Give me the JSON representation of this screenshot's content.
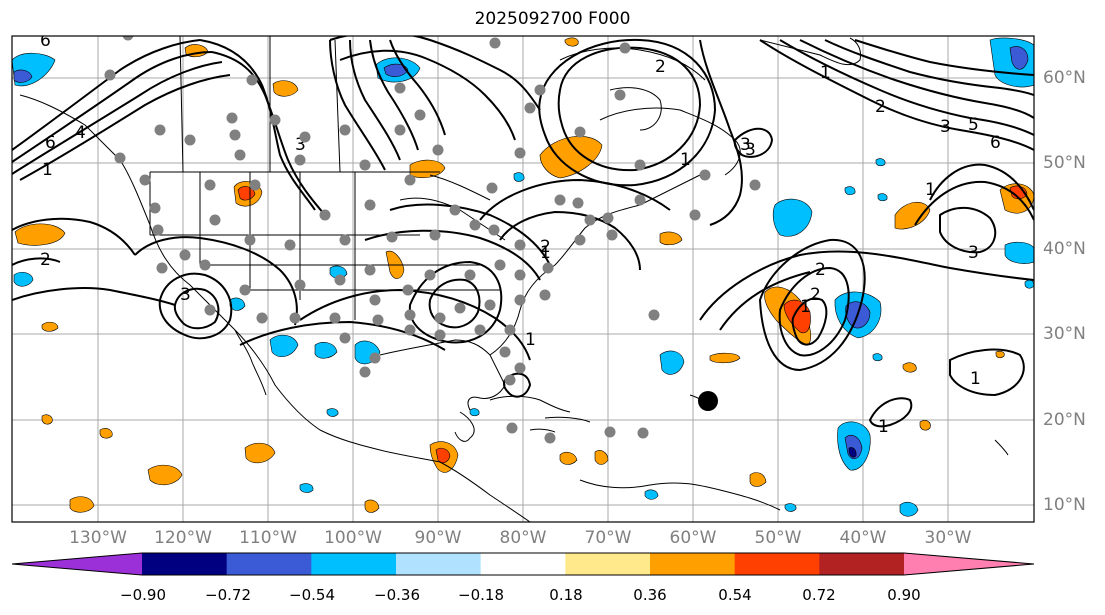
{
  "title": "2025092700 F000",
  "lat_labels": [
    "60°N",
    "50°N",
    "40°N",
    "30°N",
    "20°N",
    "10°N"
  ],
  "lon_labels": [
    "130°W",
    "120°W",
    "110°W",
    "100°W",
    "90°W",
    "80°W",
    "70°W",
    "60°W",
    "50°W",
    "40°W",
    "30°W"
  ],
  "contour_labels": [
    "6",
    "1",
    "6",
    "4",
    "3",
    "2",
    "3",
    "2",
    "1",
    "1",
    "3",
    "5",
    "6",
    "1",
    "2",
    "3",
    "1",
    "2",
    "1",
    "1",
    "2",
    "3",
    "1",
    "2",
    "3",
    "1"
  ],
  "colorbar": {
    "ticks": [
      "−0.90",
      "−0.72",
      "−0.54",
      "−0.36",
      "−0.18",
      "0.18",
      "0.36",
      "0.54",
      "0.72",
      "0.90"
    ],
    "colors": [
      "#9b30d8",
      "#000080",
      "#3b5bd6",
      "#00bfff",
      "#b0e2ff",
      "#ffffff",
      "#ffe98a",
      "#ffa000",
      "#ff4000",
      "#b22222",
      "#ff80b0"
    ]
  },
  "marker": "storm-center"
}
